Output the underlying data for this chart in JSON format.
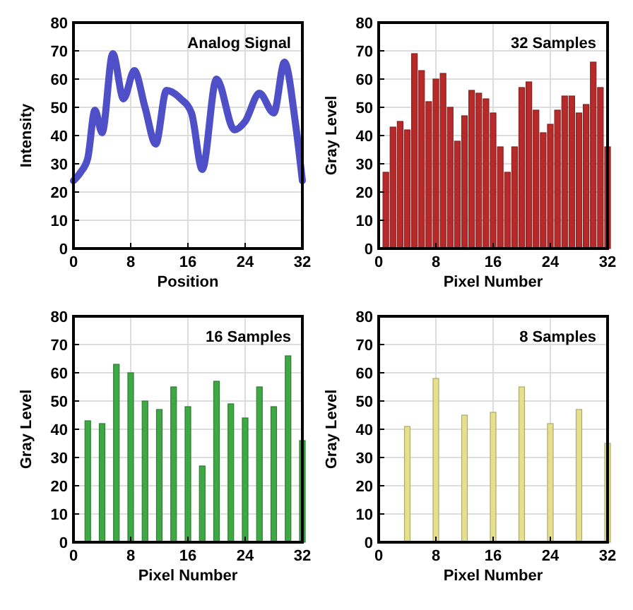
{
  "chart_data": [
    {
      "type": "line",
      "title": "Analog Signal",
      "xlabel": "Position",
      "ylabel": "Intensity",
      "x": [
        0,
        1,
        2,
        3,
        4,
        5.5,
        7,
        8.5,
        10,
        11.5,
        13,
        15,
        16.5,
        18,
        20,
        22.5,
        24,
        26,
        28,
        29.5,
        31,
        32
      ],
      "series": [
        {
          "color": "#4f4fc8",
          "values": [
            24,
            27,
            32,
            49,
            41,
            69,
            53,
            63,
            50,
            37,
            56,
            53,
            48,
            28,
            60,
            42,
            45,
            55,
            48,
            66,
            45,
            24
          ]
        }
      ],
      "xlim": [
        0,
        32
      ],
      "xticks": [
        0,
        8,
        16,
        24,
        32
      ],
      "ylim": [
        0,
        80
      ],
      "yticks": [
        0,
        10,
        20,
        30,
        40,
        50,
        60,
        70,
        80
      ],
      "grid": true
    },
    {
      "type": "bar",
      "title": "32 Samples",
      "xlabel": "Pixel Number",
      "ylabel": "Gray Level",
      "x": [
        1,
        2,
        3,
        4,
        5,
        6,
        7,
        8,
        9,
        10,
        11,
        12,
        13,
        14,
        15,
        16,
        17,
        18,
        19,
        20,
        21,
        22,
        23,
        24,
        25,
        26,
        27,
        28,
        29,
        30,
        31,
        32
      ],
      "series": [
        {
          "color": "#b82a2a",
          "values": [
            27,
            43,
            45,
            42,
            69,
            63,
            52,
            60,
            62,
            50,
            38,
            47,
            56,
            55,
            53,
            48,
            36,
            27,
            36,
            57,
            59,
            49,
            41,
            44,
            49,
            54,
            54,
            48,
            51,
            66,
            57,
            36
          ]
        }
      ],
      "xlim": [
        0,
        32
      ],
      "xticks": [
        0,
        8,
        16,
        24,
        32
      ],
      "ylim": [
        0,
        80
      ],
      "yticks": [
        0,
        10,
        20,
        30,
        40,
        50,
        60,
        70,
        80
      ],
      "grid": true
    },
    {
      "type": "bar",
      "title": "16 Samples",
      "xlabel": "Pixel Number",
      "ylabel": "Gray Level",
      "x": [
        2,
        4,
        6,
        8,
        10,
        12,
        14,
        16,
        18,
        20,
        22,
        24,
        26,
        28,
        30,
        32
      ],
      "series": [
        {
          "color": "#3ea844",
          "values": [
            43,
            42,
            63,
            60,
            50,
            47,
            55,
            48,
            27,
            57,
            49,
            44,
            55,
            48,
            66,
            36
          ]
        }
      ],
      "xlim": [
        0,
        32
      ],
      "xticks": [
        0,
        8,
        16,
        24,
        32
      ],
      "ylim": [
        0,
        80
      ],
      "yticks": [
        0,
        10,
        20,
        30,
        40,
        50,
        60,
        70,
        80
      ],
      "grid": true
    },
    {
      "type": "bar",
      "title": "8 Samples",
      "xlabel": "Pixel Number",
      "ylabel": "Gray Level",
      "x": [
        4,
        8,
        12,
        16,
        20,
        24,
        28,
        32
      ],
      "series": [
        {
          "color": "#e6e08e",
          "values": [
            41,
            58,
            45,
            46,
            55,
            42,
            47,
            35
          ]
        }
      ],
      "xlim": [
        0,
        32
      ],
      "xticks": [
        0,
        8,
        16,
        24,
        32
      ],
      "ylim": [
        0,
        80
      ],
      "yticks": [
        0,
        10,
        20,
        30,
        40,
        50,
        60,
        70,
        80
      ],
      "grid": true
    }
  ]
}
